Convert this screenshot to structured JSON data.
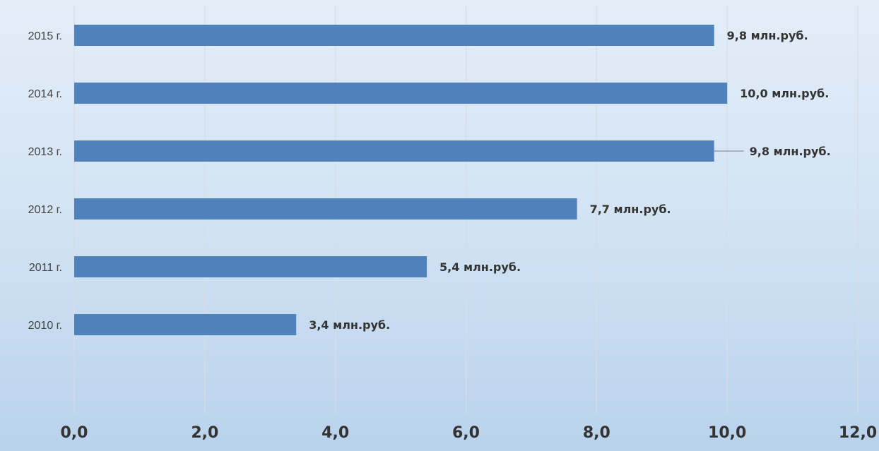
{
  "chart_data": {
    "type": "bar",
    "orientation": "horizontal",
    "title": "",
    "xlabel": "",
    "ylabel": "",
    "categories": [
      "2010 г.",
      "2011 г.",
      "2012 г.",
      "2013 г.",
      "2014 г.",
      "2015 г."
    ],
    "values": [
      3.4,
      5.4,
      7.7,
      9.8,
      10.0,
      9.8
    ],
    "data_labels": [
      "3,4 млн.руб.",
      "5,4 млн.руб.",
      "7,7 млн.руб.",
      "9,8 млн.руб.",
      "10,0 млн.руб.",
      "9,8 млн.руб."
    ],
    "xlim": [
      0,
      12
    ],
    "x_ticks": [
      0,
      2,
      4,
      6,
      8,
      10,
      12
    ],
    "x_tick_labels": [
      "0,0",
      "2,0",
      "4,0",
      "6,0",
      "8,0",
      "10,0",
      "12,0"
    ],
    "grid": "vertical",
    "legend": "none",
    "bar_color": "#4f81bd",
    "background_colors": [
      "#e3edf8",
      "#b9d2ec"
    ]
  }
}
